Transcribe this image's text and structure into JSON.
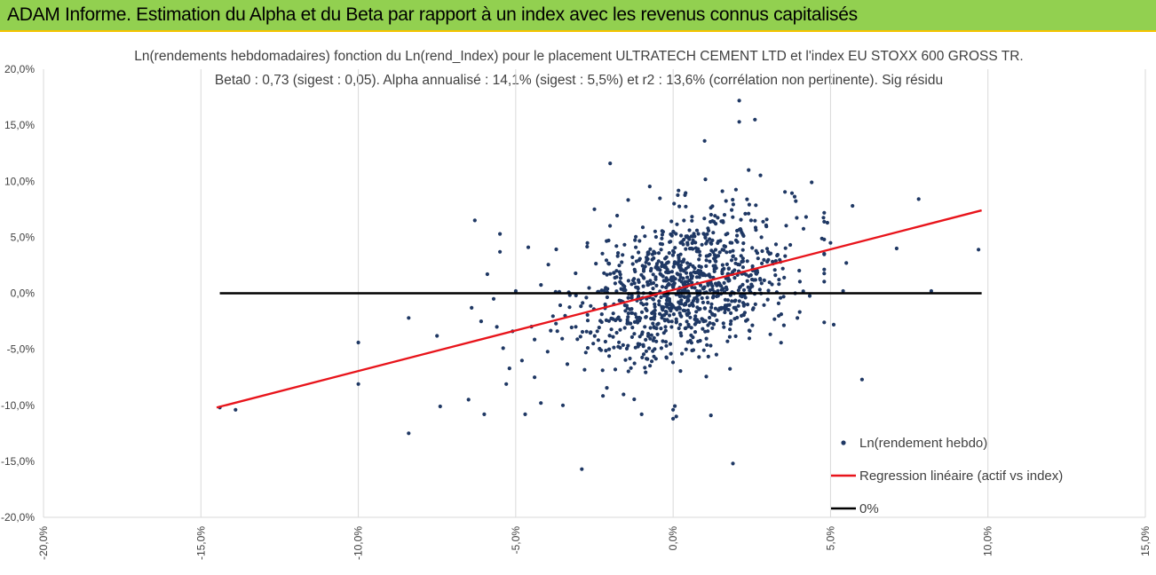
{
  "banner": {
    "title": "ADAM Informe. Estimation du Alpha et du Beta par rapport à un index avec les revenus connus capitalisés"
  },
  "colors": {
    "banner_bg": "#92d050",
    "banner_border": "#f5c400",
    "points": "#1f3864",
    "regression": "#e8141b",
    "zero_line": "#000000",
    "grid": "#d9d9d9"
  },
  "chart_data": {
    "type": "scatter",
    "title": "Ln(rendements hebdomadaires) fonction du Ln(rend_Index) pour le placement ULTRATECH CEMENT LTD et l'index EU STOXX 600 GROSS TR.",
    "subtitle": "Beta0 : 0,73 (sigest : 0,05).  Alpha annualisé : 14,1% (sigest :  5,5%) et r2 : 13,6% (corrélation non pertinente). Sig résidu",
    "xlim": [
      -0.2,
      0.15
    ],
    "ylim": [
      -0.2,
      0.2
    ],
    "x_ticks": [
      "-20,0%",
      "-15,0%",
      "-10,0%",
      "-5,0%",
      "0,0%",
      "5,0%",
      "10,0%",
      "15,0%"
    ],
    "y_ticks": [
      "20,0%",
      "15,0%",
      "10,0%",
      "5,0%",
      "0,0%",
      "-5,0%",
      "-10,0%",
      "-15,0%",
      "-20,0%"
    ],
    "grid": "vertical",
    "legend_position": "bottom-right",
    "series": [
      {
        "name": "Ln(rendement hebdo)",
        "kind": "points",
        "n_points": 1100,
        "visible_points": [
          [
            -0.144,
            -0.102
          ],
          [
            -0.139,
            -0.104
          ],
          [
            -0.1,
            -0.044
          ],
          [
            -0.1,
            -0.081
          ],
          [
            -0.084,
            -0.022
          ],
          [
            -0.084,
            -0.125
          ],
          [
            -0.075,
            -0.038
          ],
          [
            -0.074,
            -0.101
          ],
          [
            -0.065,
            -0.095
          ],
          [
            -0.064,
            -0.013
          ],
          [
            -0.063,
            0.065
          ],
          [
            -0.061,
            -0.025
          ],
          [
            -0.06,
            -0.108
          ],
          [
            -0.059,
            0.017
          ],
          [
            -0.057,
            -0.005
          ],
          [
            -0.056,
            -0.03
          ],
          [
            -0.055,
            0.037
          ],
          [
            -0.055,
            0.053
          ],
          [
            -0.054,
            -0.049
          ],
          [
            -0.053,
            -0.081
          ],
          [
            -0.052,
            -0.067
          ],
          [
            -0.051,
            -0.034
          ],
          [
            -0.05,
            0.002
          ],
          [
            -0.048,
            -0.06
          ],
          [
            -0.047,
            -0.108
          ],
          [
            -0.046,
            0.041
          ],
          [
            -0.044,
            -0.075
          ],
          [
            -0.042,
            -0.098
          ],
          [
            -0.035,
            -0.1
          ],
          [
            -0.029,
            -0.157
          ],
          [
            -0.025,
            0.075
          ],
          [
            -0.02,
            0.116
          ],
          [
            -0.01,
            -0.108
          ],
          [
            0.0,
            -0.104
          ],
          [
            0.0,
            -0.112
          ],
          [
            0.001,
            -0.11
          ],
          [
            0.01,
            0.136
          ],
          [
            0.012,
            -0.109
          ],
          [
            0.019,
            -0.152
          ],
          [
            0.021,
            0.172
          ],
          [
            0.021,
            0.153
          ],
          [
            0.024,
            0.11
          ],
          [
            0.026,
            0.155
          ],
          [
            0.044,
            0.099
          ],
          [
            0.048,
            -0.026
          ],
          [
            0.049,
            0.063
          ],
          [
            0.05,
            0.045
          ],
          [
            0.051,
            -0.028
          ],
          [
            0.054,
            0.002
          ],
          [
            0.055,
            0.027
          ],
          [
            0.057,
            0.078
          ],
          [
            0.06,
            -0.077
          ],
          [
            0.071,
            0.04
          ],
          [
            0.078,
            0.084
          ],
          [
            0.082,
            0.002
          ],
          [
            0.097,
            0.039
          ]
        ]
      },
      {
        "name": "Regression linéaire (actif vs index)",
        "kind": "line",
        "beta0": 0.73,
        "points": [
          [
            -0.145,
            -0.102
          ],
          [
            0.098,
            0.074
          ]
        ]
      },
      {
        "name": "0%",
        "kind": "line",
        "points": [
          [
            -0.144,
            0.0
          ],
          [
            0.098,
            0.0
          ]
        ]
      }
    ]
  }
}
